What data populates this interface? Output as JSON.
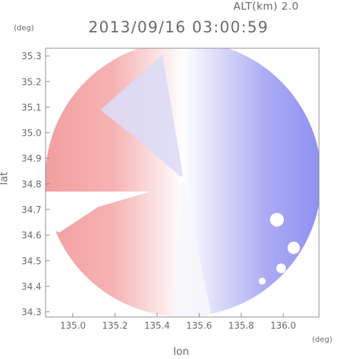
{
  "header": {
    "alt_label": "ALT(km) 2.0",
    "timestamp": "2013/09/16 03:00:59"
  },
  "chart_data": {
    "type": "heatmap",
    "title": "2013/09/16 03:00:59",
    "annotation": "ALT(km) 2.0",
    "xlabel": "lon",
    "ylabel": "lat",
    "x_unit": "(deg)",
    "y_unit": "(deg)",
    "xlim": [
      134.87,
      136.17
    ],
    "ylim": [
      34.28,
      35.33
    ],
    "x_ticks": [
      135.0,
      135.2,
      135.4,
      135.6,
      135.8,
      136.0
    ],
    "x_tick_labels": [
      "135.0",
      "135.2",
      "135.4",
      "135.6",
      "135.8",
      "136.0"
    ],
    "y_ticks": [
      34.3,
      34.4,
      34.5,
      34.6,
      34.7,
      34.8,
      34.9,
      35.0,
      35.1,
      35.2,
      35.3
    ],
    "y_tick_labels": [
      "34.3",
      "34.4",
      "34.5",
      "34.6",
      "34.7",
      "34.8",
      "34.9",
      "35.0",
      "35.1",
      "35.2",
      "35.3"
    ],
    "radar_center": {
      "lon": 135.525,
      "lat": 34.82
    },
    "colors": {
      "positive": "#f08080",
      "negative": "#7878f0",
      "zero": "#ffffff"
    },
    "grid": false
  }
}
